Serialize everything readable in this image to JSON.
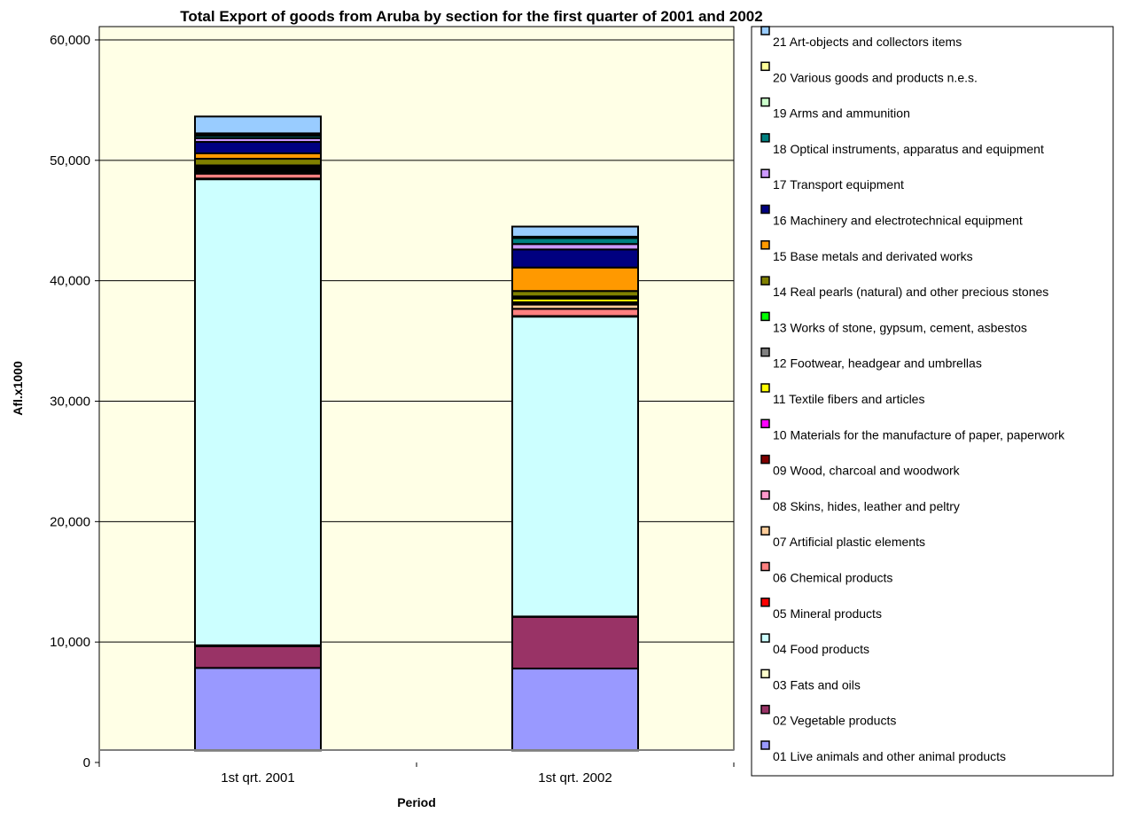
{
  "chart_data": {
    "type": "bar",
    "stacked": true,
    "title": "Total Export of goods from Aruba by section for the first quarter of 2001 and 2002",
    "xlabel": "Period",
    "ylabel": "Afl.x1000",
    "ylim": [
      0,
      60000
    ],
    "yticks": [
      "0",
      "10,000",
      "20,000",
      "30,000",
      "40,000",
      "50,000",
      "60,000"
    ],
    "ytick_values": [
      0,
      10000,
      20000,
      30000,
      40000,
      50000,
      60000
    ],
    "grid": true,
    "legend_position": "right",
    "plot_background": "#FFFFE6",
    "categories": [
      "1st qrt. 2001",
      "1st qrt. 2002"
    ],
    "series": [
      {
        "name": "01 Live animals and other animal products",
        "color": "#9999FF",
        "values": [
          6850,
          6800
        ]
      },
      {
        "name": "02 Vegetable products",
        "color": "#993366",
        "values": [
          1800,
          4300
        ]
      },
      {
        "name": "03 Fats and oils",
        "color": "#FFFFCC",
        "values": [
          80,
          20
        ]
      },
      {
        "name": "04 Food products",
        "color": "#CCFFFF",
        "values": [
          38700,
          24900
        ]
      },
      {
        "name": "05 Mineral products",
        "color": "#FF0000",
        "values": [
          60,
          50
        ]
      },
      {
        "name": "06 Chemical products",
        "color": "#FF8080",
        "values": [
          400,
          600
        ]
      },
      {
        "name": "07 Artificial plastic elements",
        "color": "#FFCC99",
        "values": [
          150,
          350
        ]
      },
      {
        "name": "08 Skins, hides, leather and peltry",
        "color": "#FF99CC",
        "values": [
          60,
          80
        ]
      },
      {
        "name": "09 Wood, charcoal and woodwork",
        "color": "#800000",
        "values": [
          60,
          60
        ]
      },
      {
        "name": "10 Materials for the manufacture of paper, paperwork",
        "color": "#FF00FF",
        "values": [
          60,
          60
        ]
      },
      {
        "name": "11 Textile fibers and articles",
        "color": "#FFFF00",
        "values": [
          150,
          300
        ]
      },
      {
        "name": "12 Footwear, headgear and umbrellas",
        "color": "#808080",
        "values": [
          150,
          120
        ]
      },
      {
        "name": "13 Works of stone, gypsum, cement, asbestos",
        "color": "#00FF00",
        "values": [
          60,
          60
        ]
      },
      {
        "name": "14 Real pearls (natural) and other precious stones",
        "color": "#808000",
        "values": [
          550,
          450
        ]
      },
      {
        "name": "15 Base metals and derivated works",
        "color": "#FF9900",
        "values": [
          450,
          1950
        ]
      },
      {
        "name": "16 Machinery and electrotechnical equipment",
        "color": "#000080",
        "values": [
          950,
          1500
        ]
      },
      {
        "name": "17 Transport equipment",
        "color": "#CC99FF",
        "values": [
          300,
          450
        ]
      },
      {
        "name": "18 Optical instruments, apparatus and equipment",
        "color": "#008080",
        "values": [
          200,
          500
        ]
      },
      {
        "name": "19 Arms and ammunition",
        "color": "#CCFFCC",
        "values": [
          60,
          30
        ]
      },
      {
        "name": "20 Various goods and products n.e.s.",
        "color": "#FFFF99",
        "values": [
          150,
          80
        ]
      },
      {
        "name": "21 Art-objects and collectors items",
        "color": "#99CCFF",
        "values": [
          1400,
          840
        ]
      }
    ]
  }
}
